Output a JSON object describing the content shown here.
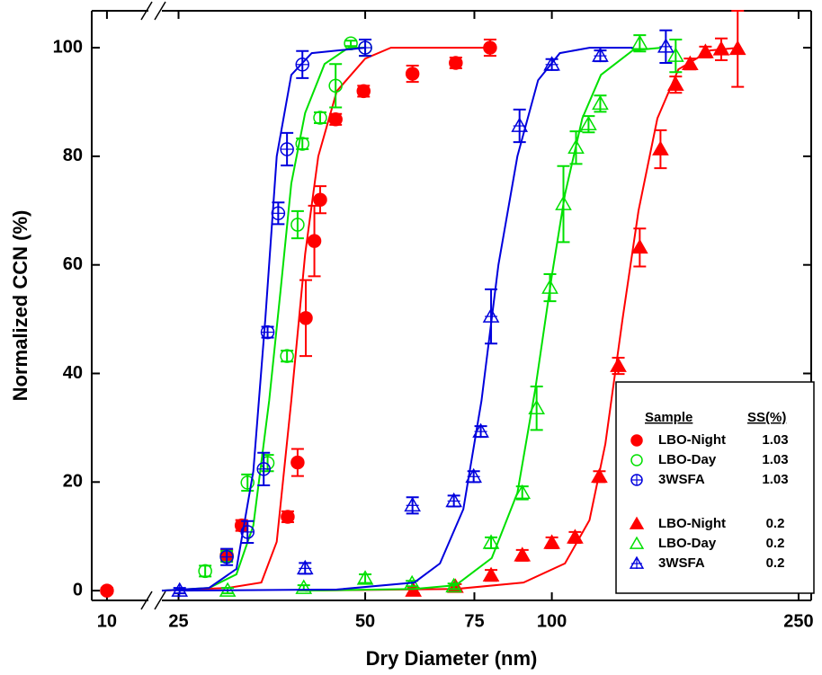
{
  "chart_data": {
    "type": "scatter",
    "x_label": "Dry Diameter (nm)",
    "y_label": "Normalized CCN (%)",
    "xscale": "log",
    "xlim": [
      9.5,
      262
    ],
    "xbreak": [
      11.5,
      23.5
    ],
    "ylim": [
      -1.8,
      106.8
    ],
    "xticks": [
      10,
      25,
      50,
      75,
      100,
      250
    ],
    "yticks": [
      0,
      20,
      40,
      60,
      80,
      100
    ],
    "legend_headers": [
      "Sample",
      "SS(%)"
    ],
    "legend": "lower right",
    "series": [
      {
        "name": "LBO-Night",
        "ss": "1.03",
        "color": "#ff0000",
        "marker": "circle",
        "fill": "filled",
        "x": [
          10,
          29.9,
          31.6,
          37.5,
          38.9,
          40.1,
          41.4,
          42.3,
          44.8,
          49.7,
          59.6,
          70,
          79.5
        ],
        "values": [
          0,
          6.5,
          12,
          13.6,
          23.6,
          50.2,
          64.4,
          72,
          86.8,
          92,
          95.2,
          97.2,
          100
        ],
        "errors": [
          0.5,
          1,
          1,
          1,
          2.5,
          7,
          6.5,
          2.5,
          1,
          1,
          1.5,
          1,
          1.5
        ],
        "fit": {
          "x": [
            23.5,
            30,
            34,
            36,
            38,
            40,
            42,
            45,
            50,
            55,
            80
          ],
          "values": [
            0,
            0.5,
            1.5,
            9,
            35,
            62,
            80,
            92,
            98,
            100,
            100
          ]
        }
      },
      {
        "name": "LBO-Day",
        "ss": "1.03",
        "color": "#00e000",
        "marker": "circle",
        "fill": "open",
        "x": [
          27.6,
          29.9,
          32.3,
          34.8,
          37.4,
          38.9,
          39.6,
          42.3,
          44.8,
          47.4,
          50
        ],
        "values": [
          3.6,
          6.3,
          19.9,
          23.5,
          43.2,
          67.4,
          82.3,
          87.1,
          93,
          100.8,
          100
        ],
        "errors": [
          1,
          1,
          1.5,
          1.5,
          1,
          2.5,
          1,
          1,
          4,
          0.5,
          1.5
        ],
        "fit": {
          "x": [
            23.5,
            28,
            31,
            33,
            35,
            36.5,
            38,
            40,
            43,
            47,
            50
          ],
          "values": [
            0,
            0.5,
            3,
            12,
            35,
            55,
            75,
            88,
            97,
            100,
            100
          ]
        }
      },
      {
        "name": "3WSFA",
        "ss": "1.03",
        "color": "#0000dd",
        "marker": "circle",
        "fill": "crossed",
        "x": [
          29.9,
          32.3,
          34.3,
          34.8,
          36.2,
          37.4,
          39.6,
          50
        ],
        "values": [
          6.2,
          10.8,
          22.4,
          47.6,
          69.5,
          81.3,
          96.9,
          100
        ],
        "errors": [
          1.5,
          2,
          3,
          1,
          2,
          3,
          2.5,
          1.5
        ],
        "fit": {
          "x": [
            23.5,
            28,
            31,
            33,
            34.5,
            36,
            38,
            41,
            50
          ],
          "values": [
            0,
            0.5,
            4,
            22,
            50,
            80,
            95,
            99,
            100
          ]
        }
      },
      {
        "name": "LBO-Night",
        "ss": "0.2",
        "color": "#ff0000",
        "marker": "triangle",
        "fill": "filled",
        "x": [
          59.8,
          69.9,
          79.8,
          89.6,
          100,
          109,
          119.3,
          128,
          138.6,
          149.7,
          158.4,
          167.1,
          176.9,
          187.6,
          199.4
        ],
        "values": [
          0,
          0.7,
          2.8,
          6.5,
          8.8,
          9.8,
          21,
          41.4,
          63.2,
          81.3,
          93.2,
          97,
          99.2,
          99.7,
          99.8
        ],
        "errors": [
          0.5,
          0.5,
          1,
          1,
          1,
          1,
          1,
          1.5,
          3.5,
          3.5,
          1.5,
          1,
          1,
          2,
          7
        ],
        "fit": {
          "x": [
            40,
            70,
            90,
            105,
            115,
            122,
            130,
            138,
            148,
            160,
            180,
            200
          ],
          "values": [
            0,
            0.3,
            1.5,
            5,
            13,
            27,
            50,
            70,
            87,
            96,
            99.5,
            100
          ]
        }
      },
      {
        "name": "LBO-Day",
        "ss": "0.2",
        "color": "#00e000",
        "marker": "triangle",
        "fill": "open",
        "x": [
          30,
          39.8,
          50,
          59.5,
          69.5,
          79.8,
          89.6,
          94.5,
          99.3,
          104.4,
          109.4,
          114.6,
          119.7,
          138.6,
          158.4
        ],
        "values": [
          0,
          0.5,
          2.2,
          1.3,
          0.8,
          8.8,
          18,
          33.6,
          55.8,
          71.2,
          81.6,
          85.9,
          89.7,
          100.8,
          98.5
        ],
        "errors": [
          0.5,
          0.5,
          0.8,
          0.5,
          0.5,
          1,
          1.2,
          4,
          2.5,
          7,
          3,
          1.5,
          1.5,
          1.5,
          3
        ],
        "fit": {
          "x": [
            40,
            60,
            70,
            80,
            88,
            94,
            100,
            105,
            112,
            120,
            135,
            150
          ],
          "values": [
            0,
            0.3,
            1,
            6,
            18,
            37,
            58,
            73,
            87,
            95,
            99.5,
            100
          ]
        }
      },
      {
        "name": "3WSFA",
        "ss": "0.2",
        "color": "#0000dd",
        "marker": "triangle",
        "fill": "crossed",
        "x": [
          25.1,
          40,
          59.6,
          69.5,
          74.8,
          76.8,
          79.8,
          88.7,
          100,
          119.7,
          152.7
        ],
        "values": [
          0,
          4.1,
          15.7,
          16.5,
          21,
          29.3,
          50.5,
          85.6,
          96.9,
          98.5,
          100.2
        ],
        "errors": [
          0.5,
          1,
          1.5,
          1,
          1,
          1,
          5,
          3,
          1,
          1,
          3
        ],
        "fit": {
          "x": [
            25,
            45,
            60,
            66,
            72,
            77,
            82,
            88,
            95,
            103,
            115,
            135
          ],
          "values": [
            0,
            0.2,
            1.5,
            5,
            15,
            35,
            60,
            80,
            94,
            99,
            100,
            100
          ]
        }
      }
    ]
  }
}
